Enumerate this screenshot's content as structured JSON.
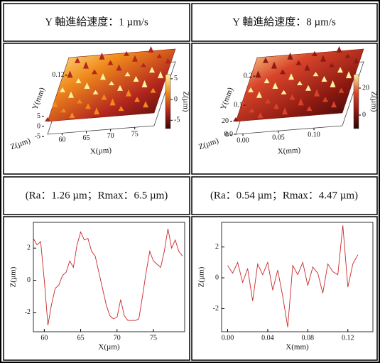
{
  "table": {
    "rows": [
      [
        {
          "text": "Y 軸進給速度：1 µm/s"
        },
        {
          "text": "Y 軸進給速度：8 µm/s"
        }
      ],
      [
        {
          "type": "surface",
          "xlabel": "X(µm)",
          "ylabel": "Y(mm)",
          "zlabel": "Z(µm)",
          "colorbar_label": "Z(µm)",
          "xlim": [
            57,
            79
          ],
          "xticks": [
            60,
            65,
            70,
            75
          ],
          "ylim": [
            0,
            0.13
          ],
          "yticks": [
            0.12
          ],
          "zlim": [
            -6,
            6
          ],
          "zticks": [
            5,
            0,
            -5
          ],
          "clim": [
            -7,
            6
          ],
          "colorbar_ticks": [
            5,
            0,
            -5
          ],
          "colormap": [
            "#3a0505",
            "#b3261e",
            "#f08a1c",
            "#fff3a0"
          ]
        },
        {
          "type": "surface",
          "xlabel": "X(mm)",
          "ylabel": "Y(mm)",
          "zlabel": "Z(µm)",
          "colorbar_label": "Z(µm)",
          "xlim": [
            -0.01,
            0.14
          ],
          "xticks": [
            {
              "value": 0.0,
              "label": "0.00"
            },
            0.05,
            {
              "value": 0.1,
              "label": "0.10"
            }
          ],
          "ylim": [
            0,
            0.22
          ],
          "yticks": [
            {
              "value": 0.0,
              "label": "0.0"
            },
            0.1,
            0.2
          ],
          "zlim": [
            -5,
            30
          ],
          "zticks": [
            0,
            20
          ],
          "clim": [
            -10,
            30
          ],
          "colorbar_ticks": [
            20,
            0
          ],
          "colormap": [
            "#2a0303",
            "#8e1a12",
            "#d8442a",
            "#fff3a0"
          ]
        }
      ],
      [
        {
          "text": "(Ra：1.26 µm；Rmax：6.5 µm)"
        },
        {
          "text": "(Ra：0.54 µm；Rmax：4.47 µm)"
        }
      ],
      [
        {
          "type": "line",
          "xlabel": "X(µm)",
          "ylabel": "Z(µm)",
          "color": "#c8282a",
          "xlim": [
            58.5,
            79.3
          ],
          "ylim": [
            -3.2,
            3.6
          ],
          "xticks": [
            60,
            65,
            70,
            75
          ],
          "yticks": [
            2,
            0,
            -2
          ],
          "x": [
            58.5,
            59,
            59.5,
            60,
            60.5,
            61,
            61.5,
            62,
            62.5,
            63,
            63.5,
            64,
            64.5,
            65,
            65.5,
            66,
            66.5,
            67,
            67.5,
            68,
            68.5,
            69,
            69.5,
            70,
            70.5,
            71,
            71.5,
            72,
            72.5,
            73,
            73.5,
            74,
            74.5,
            75,
            75.5,
            76,
            76.5,
            77,
            77.5,
            78,
            78.5,
            79
          ],
          "values": [
            2.6,
            2.2,
            2.4,
            0,
            -2.8,
            -1.5,
            -0.5,
            -0.3,
            0.3,
            0.5,
            1.2,
            0.8,
            2.2,
            3.0,
            2.5,
            2.6,
            1.8,
            1.5,
            0.5,
            -0.5,
            -1.5,
            -2.2,
            -2.4,
            -2.3,
            -1.2,
            -2.2,
            -2.5,
            -2.5,
            -2.5,
            -2.4,
            -1.0,
            0.5,
            1.8,
            1.2,
            1.0,
            0.8,
            1.8,
            3.2,
            2.0,
            2.5,
            1.8,
            1.5
          ]
        },
        {
          "type": "line",
          "xlabel": "X(mm)",
          "ylabel": "Z(µm)",
          "color": "#c8282a",
          "xlim": [
            -0.006,
            0.145
          ],
          "ylim": [
            -3.5,
            3.6
          ],
          "xticks": [
            {
              "value": 0.0,
              "label": "0.00"
            },
            0.04,
            0.08,
            0.12
          ],
          "yticks": [
            2,
            0,
            -2
          ],
          "x": [
            0,
            0.005,
            0.01,
            0.015,
            0.02,
            0.025,
            0.03,
            0.035,
            0.04,
            0.045,
            0.05,
            0.055,
            0.06,
            0.065,
            0.07,
            0.075,
            0.08,
            0.085,
            0.09,
            0.095,
            0.1,
            0.105,
            0.11,
            0.115,
            0.12,
            0.125,
            0.13
          ],
          "values": [
            0.8,
            0.3,
            1.0,
            -0.3,
            0.6,
            -1.5,
            0.9,
            0.2,
            1.0,
            -0.8,
            0.5,
            -1.2,
            -3.2,
            0.8,
            0.2,
            1.0,
            -0.5,
            0.7,
            0.3,
            -1.0,
            0.9,
            0.4,
            0.2,
            3.4,
            -0.6,
            0.9,
            1.5
          ]
        }
      ]
    ]
  }
}
